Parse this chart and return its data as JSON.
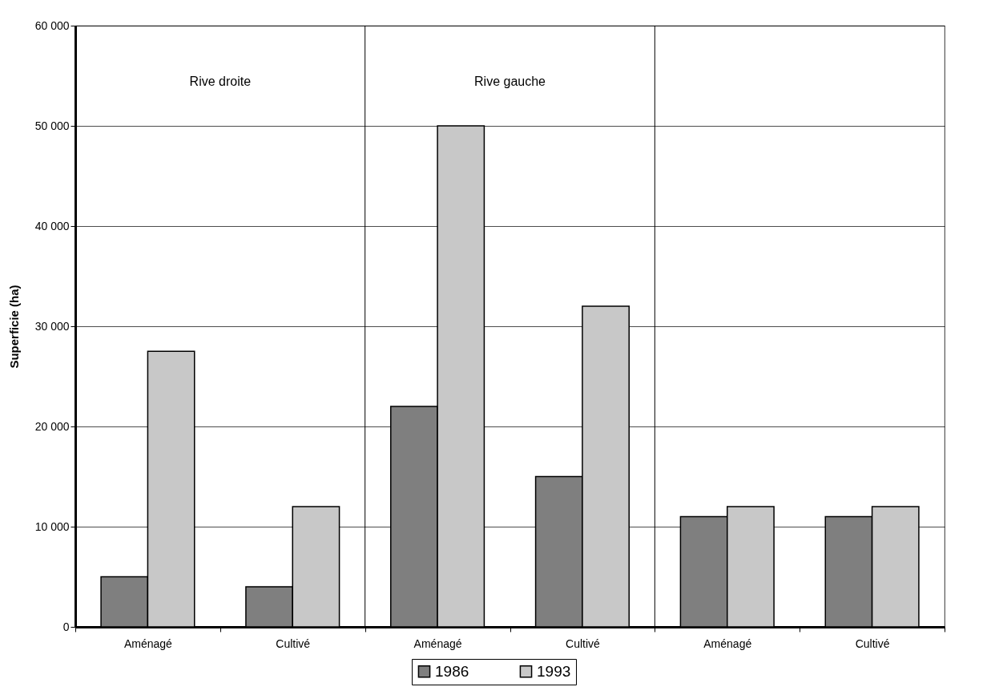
{
  "chart_data": {
    "type": "bar",
    "ylabel": "Superficie (ha)",
    "categories": [
      "Aménagé",
      "Cultivé",
      "Aménagé",
      "Cultivé",
      "Aménagé",
      "Cultivé"
    ],
    "series": [
      {
        "name": "1986",
        "color": "#7f7f7f",
        "values": [
          5000,
          4000,
          22000,
          15000,
          11000,
          11000
        ]
      },
      {
        "name": "1993",
        "color": "#c8c8c8",
        "values": [
          27500,
          12000,
          50000,
          32000,
          12000,
          12000
        ]
      }
    ],
    "ylim": [
      0,
      60000
    ],
    "yticks": [
      0,
      {
        "value": 10000,
        "label": "10 000"
      },
      {
        "value": 20000,
        "label": "20 000"
      },
      {
        "value": 30000,
        "label": "30 000"
      },
      {
        "value": 40000,
        "label": "40 000"
      },
      {
        "value": 50000,
        "label": "50 000"
      },
      {
        "value": 60000,
        "label": "60 000"
      }
    ],
    "annotations": [
      "Rive droite",
      "Rive gauche"
    ],
    "grid": "y",
    "legend": "bottom"
  }
}
